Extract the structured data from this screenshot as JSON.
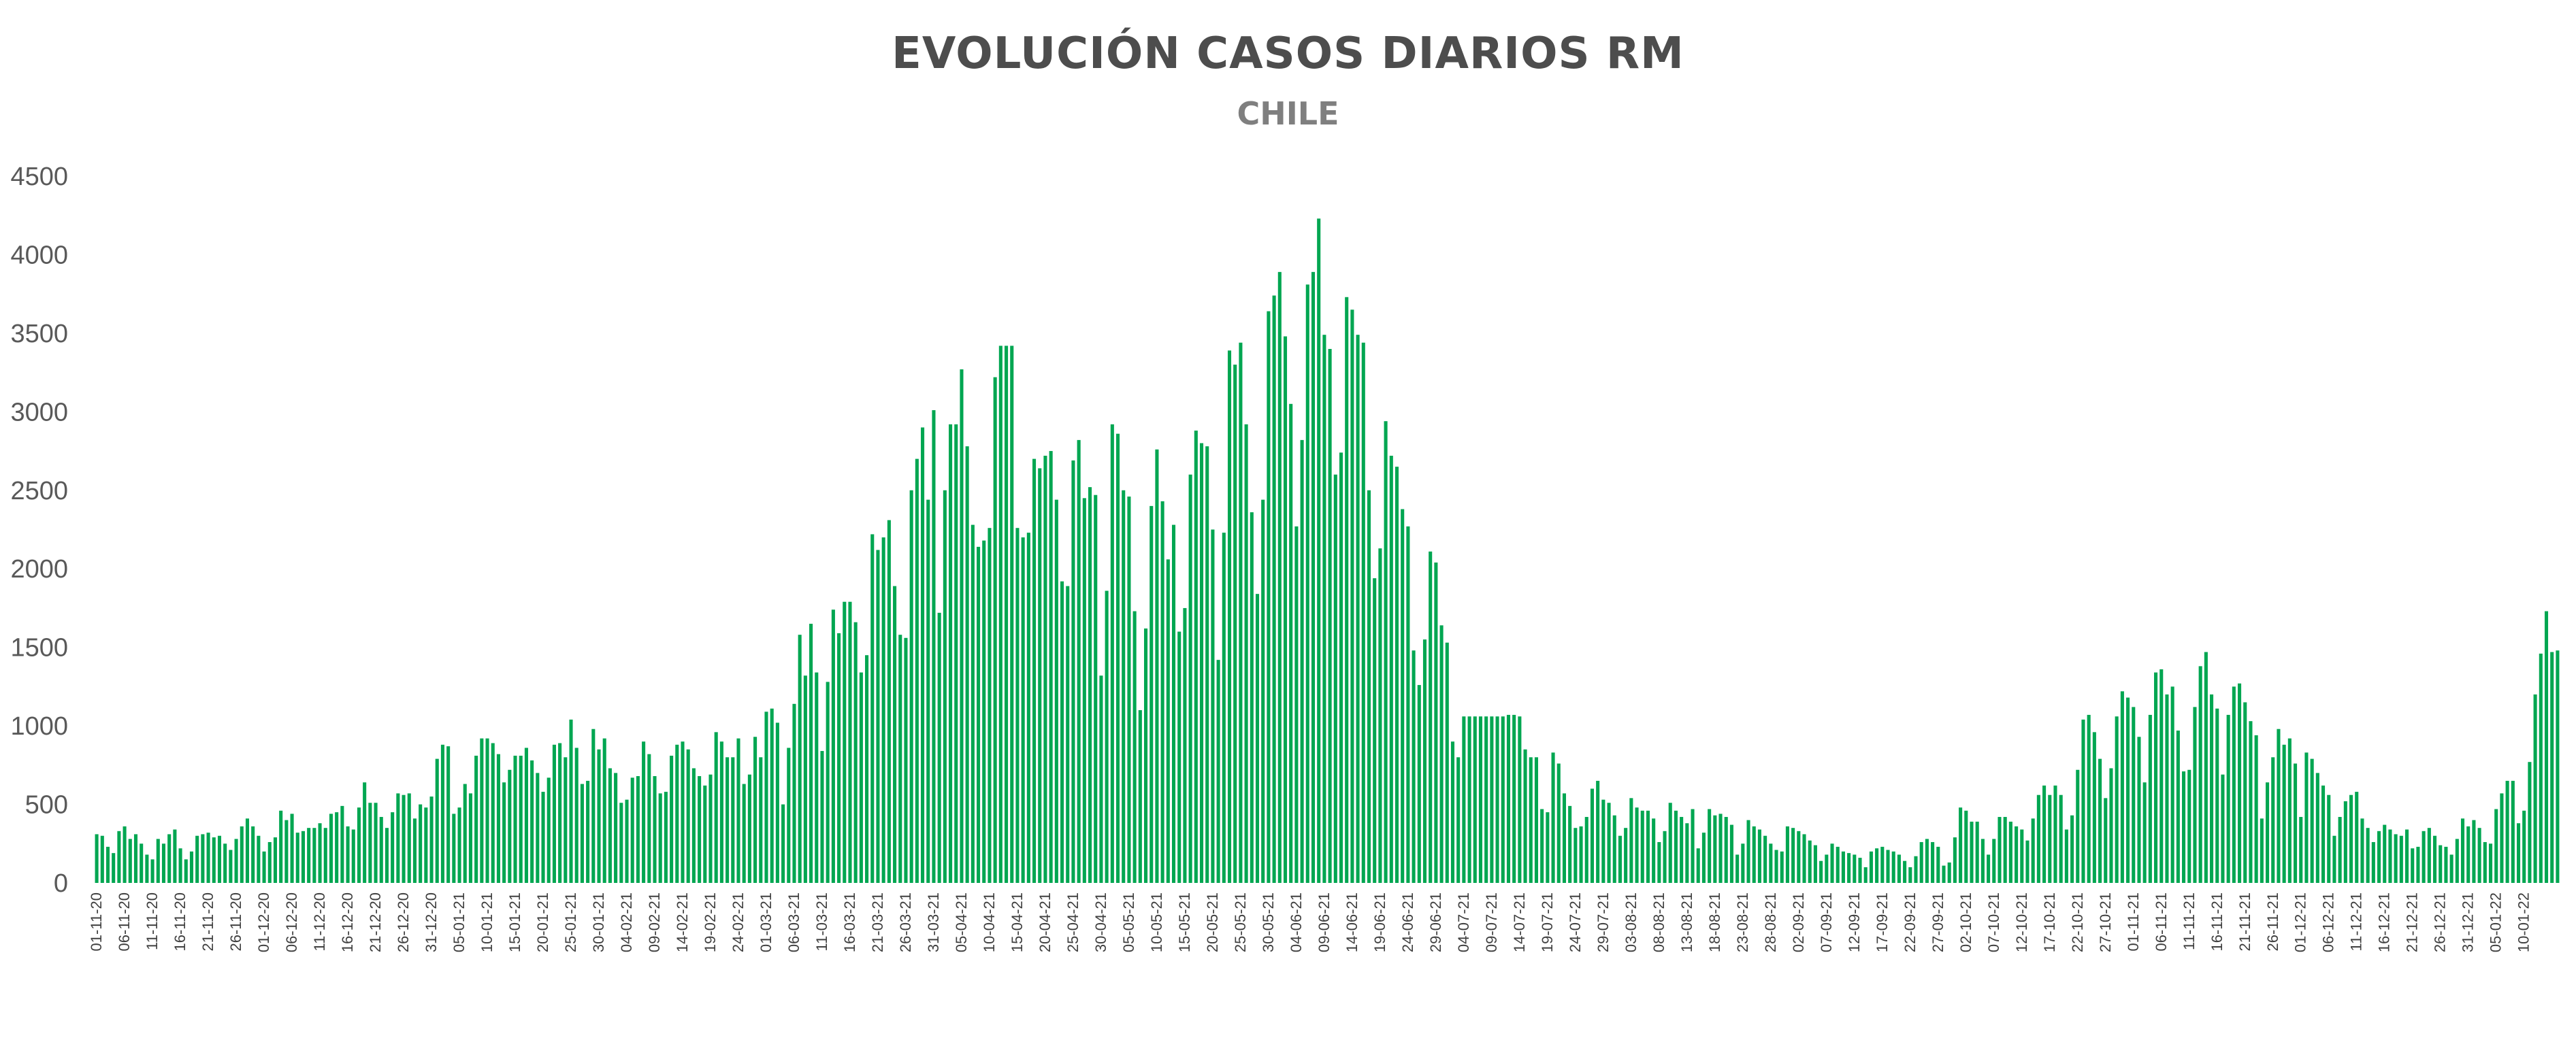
{
  "chart_data": {
    "type": "bar",
    "title": "EVOLUCIÓN CASOS DIARIOS RM",
    "subtitle": "CHILE",
    "xlabel": "",
    "ylabel": "",
    "ylim": [
      0,
      4500
    ],
    "yticks": [
      0,
      500,
      1000,
      1500,
      2000,
      2500,
      3000,
      3500,
      4000,
      4500
    ],
    "grid": false,
    "bar_color": "#00a651",
    "x_start": "01-11-20",
    "x_end": "11-01-22",
    "xtick_labels": [
      "01-11-20",
      "06-11-20",
      "11-11-20",
      "16-11-20",
      "21-11-20",
      "26-11-20",
      "01-12-20",
      "06-12-20",
      "11-12-20",
      "16-12-20",
      "21-12-20",
      "26-12-20",
      "31-12-20",
      "05-01-21",
      "10-01-21",
      "15-01-21",
      "20-01-21",
      "25-01-21",
      "30-01-21",
      "04-02-21",
      "09-02-21",
      "14-02-21",
      "19-02-21",
      "24-02-21",
      "01-03-21",
      "06-03-21",
      "11-03-21",
      "16-03-21",
      "21-03-21",
      "26-03-21",
      "31-03-21",
      "05-04-21",
      "10-04-21",
      "15-04-21",
      "20-04-21",
      "25-04-21",
      "30-04-21",
      "05-05-21",
      "10-05-21",
      "15-05-21",
      "20-05-21",
      "25-05-21",
      "30-05-21",
      "04-06-21",
      "09-06-21",
      "14-06-21",
      "19-06-21",
      "24-06-21",
      "29-06-21",
      "04-07-21",
      "09-07-21",
      "14-07-21",
      "19-07-21",
      "24-07-21",
      "29-07-21",
      "03-08-21",
      "08-08-21",
      "13-08-21",
      "18-08-21",
      "23-08-21",
      "28-08-21",
      "02-09-21",
      "07-09-21",
      "12-09-21",
      "17-09-21",
      "22-09-21",
      "27-09-21",
      "02-10-21",
      "07-10-21",
      "12-10-21",
      "17-10-21",
      "22-10-21",
      "27-10-21",
      "01-11-21",
      "06-11-21",
      "11-11-21",
      "16-11-21",
      "21-11-21",
      "26-11-21",
      "01-12-21",
      "06-12-21",
      "11-12-21",
      "16-12-21",
      "21-12-21",
      "26-12-21",
      "31-12-21",
      "05-01-22",
      "10-01-22"
    ],
    "values": [
      310,
      300,
      230,
      190,
      330,
      360,
      280,
      310,
      250,
      180,
      150,
      280,
      250,
      310,
      340,
      220,
      150,
      200,
      300,
      310,
      320,
      290,
      300,
      250,
      210,
      280,
      360,
      410,
      360,
      300,
      200,
      260,
      290,
      460,
      400,
      440,
      320,
      330,
      350,
      350,
      380,
      350,
      440,
      450,
      490,
      360,
      340,
      480,
      640,
      510,
      510,
      420,
      350,
      450,
      570,
      560,
      570,
      410,
      500,
      480,
      550,
      790,
      880,
      870,
      440,
      480,
      630,
      570,
      810,
      920,
      920,
      890,
      820,
      640,
      720,
      810,
      810,
      860,
      780,
      700,
      580,
      670,
      880,
      890,
      800,
      1040,
      860,
      630,
      650,
      980,
      850,
      920,
      730,
      700,
      510,
      530,
      670,
      680,
      900,
      820,
      680,
      570,
      580,
      810,
      880,
      900,
      850,
      730,
      680,
      620,
      690,
      960,
      900,
      800,
      800,
      920,
      630,
      690,
      930,
      800,
      1090,
      1110,
      1020,
      500,
      860,
      1140,
      1580,
      1320,
      1650,
      1340,
      840,
      1280,
      1740,
      1590,
      1790,
      1790,
      1660,
      1340,
      1450,
      2220,
      2120,
      2200,
      2310,
      1890,
      1580,
      1560,
      2500,
      2700,
      2900,
      2440,
      3010,
      1720,
      2500,
      2920,
      2920,
      3270,
      2780,
      2280,
      2140,
      2180,
      2260,
      3220,
      3420,
      3420,
      3420,
      2260,
      2200,
      2230,
      2700,
      2640,
      2720,
      2750,
      2440,
      1920,
      1890,
      2690,
      2820,
      2450,
      2520,
      2470,
      1320,
      1860,
      2920,
      2860,
      2500,
      2460,
      1730,
      1100,
      1620,
      2400,
      2760,
      2430,
      2060,
      2280,
      1600,
      1750,
      2600,
      2880,
      2800,
      2780,
      2250,
      1420,
      2230,
      3390,
      3300,
      3440,
      2920,
      2360,
      1840,
      2440,
      3640,
      3740,
      3890,
      3480,
      3050,
      2270,
      2820,
      3810,
      3890,
      4230,
      3490,
      3400,
      2600,
      2740,
      3730,
      3650,
      3490,
      3440,
      2500,
      1940,
      2130,
      2940,
      2720,
      2650,
      2380,
      2270,
      1480,
      1260,
      1550,
      2110,
      2040,
      1640,
      1530,
      900,
      800,
      1060,
      1060,
      1060,
      1060,
      1060,
      1060,
      1060,
      1060,
      1070,
      1070,
      1060,
      850,
      800,
      800,
      470,
      450,
      830,
      760,
      570,
      490,
      350,
      360,
      420,
      600,
      650,
      530,
      510,
      430,
      300,
      350,
      540,
      480,
      460,
      460,
      410,
      260,
      330,
      510,
      460,
      420,
      380,
      470,
      220,
      320,
      470,
      430,
      440,
      420,
      370,
      180,
      250,
      400,
      360,
      340,
      300,
      250,
      210,
      200,
      360,
      350,
      330,
      310,
      270,
      240,
      140,
      180,
      250,
      230,
      200,
      190,
      180,
      160,
      100,
      200,
      220,
      230,
      210,
      200,
      180,
      140,
      100,
      170,
      260,
      280,
      260,
      230,
      110,
      130,
      290,
      480,
      460,
      390,
      390,
      280,
      180,
      280,
      420,
      420,
      390,
      360,
      340,
      270,
      410,
      560,
      620,
      560,
      620,
      560,
      340,
      430,
      720,
      1040,
      1070,
      960,
      790,
      540,
      730,
      1060,
      1220,
      1180,
      1120,
      930,
      640,
      1070,
      1340,
      1360,
      1200,
      1250,
      970,
      710,
      720,
      1120,
      1380,
      1470,
      1200,
      1110,
      690,
      1070,
      1250,
      1270,
      1150,
      1030,
      940,
      410,
      640,
      800,
      980,
      880,
      920,
      760,
      420,
      830,
      790,
      700,
      620,
      560,
      300,
      420,
      520,
      560,
      580,
      410,
      350,
      260,
      330,
      370,
      340,
      310,
      300,
      340,
      220,
      230,
      330,
      350,
      300,
      240,
      230,
      180,
      280,
      410,
      360,
      400,
      350,
      260,
      250,
      470,
      570,
      650,
      650,
      380,
      460,
      770,
      1200,
      1460,
      1730,
      1470,
      1480
    ]
  }
}
